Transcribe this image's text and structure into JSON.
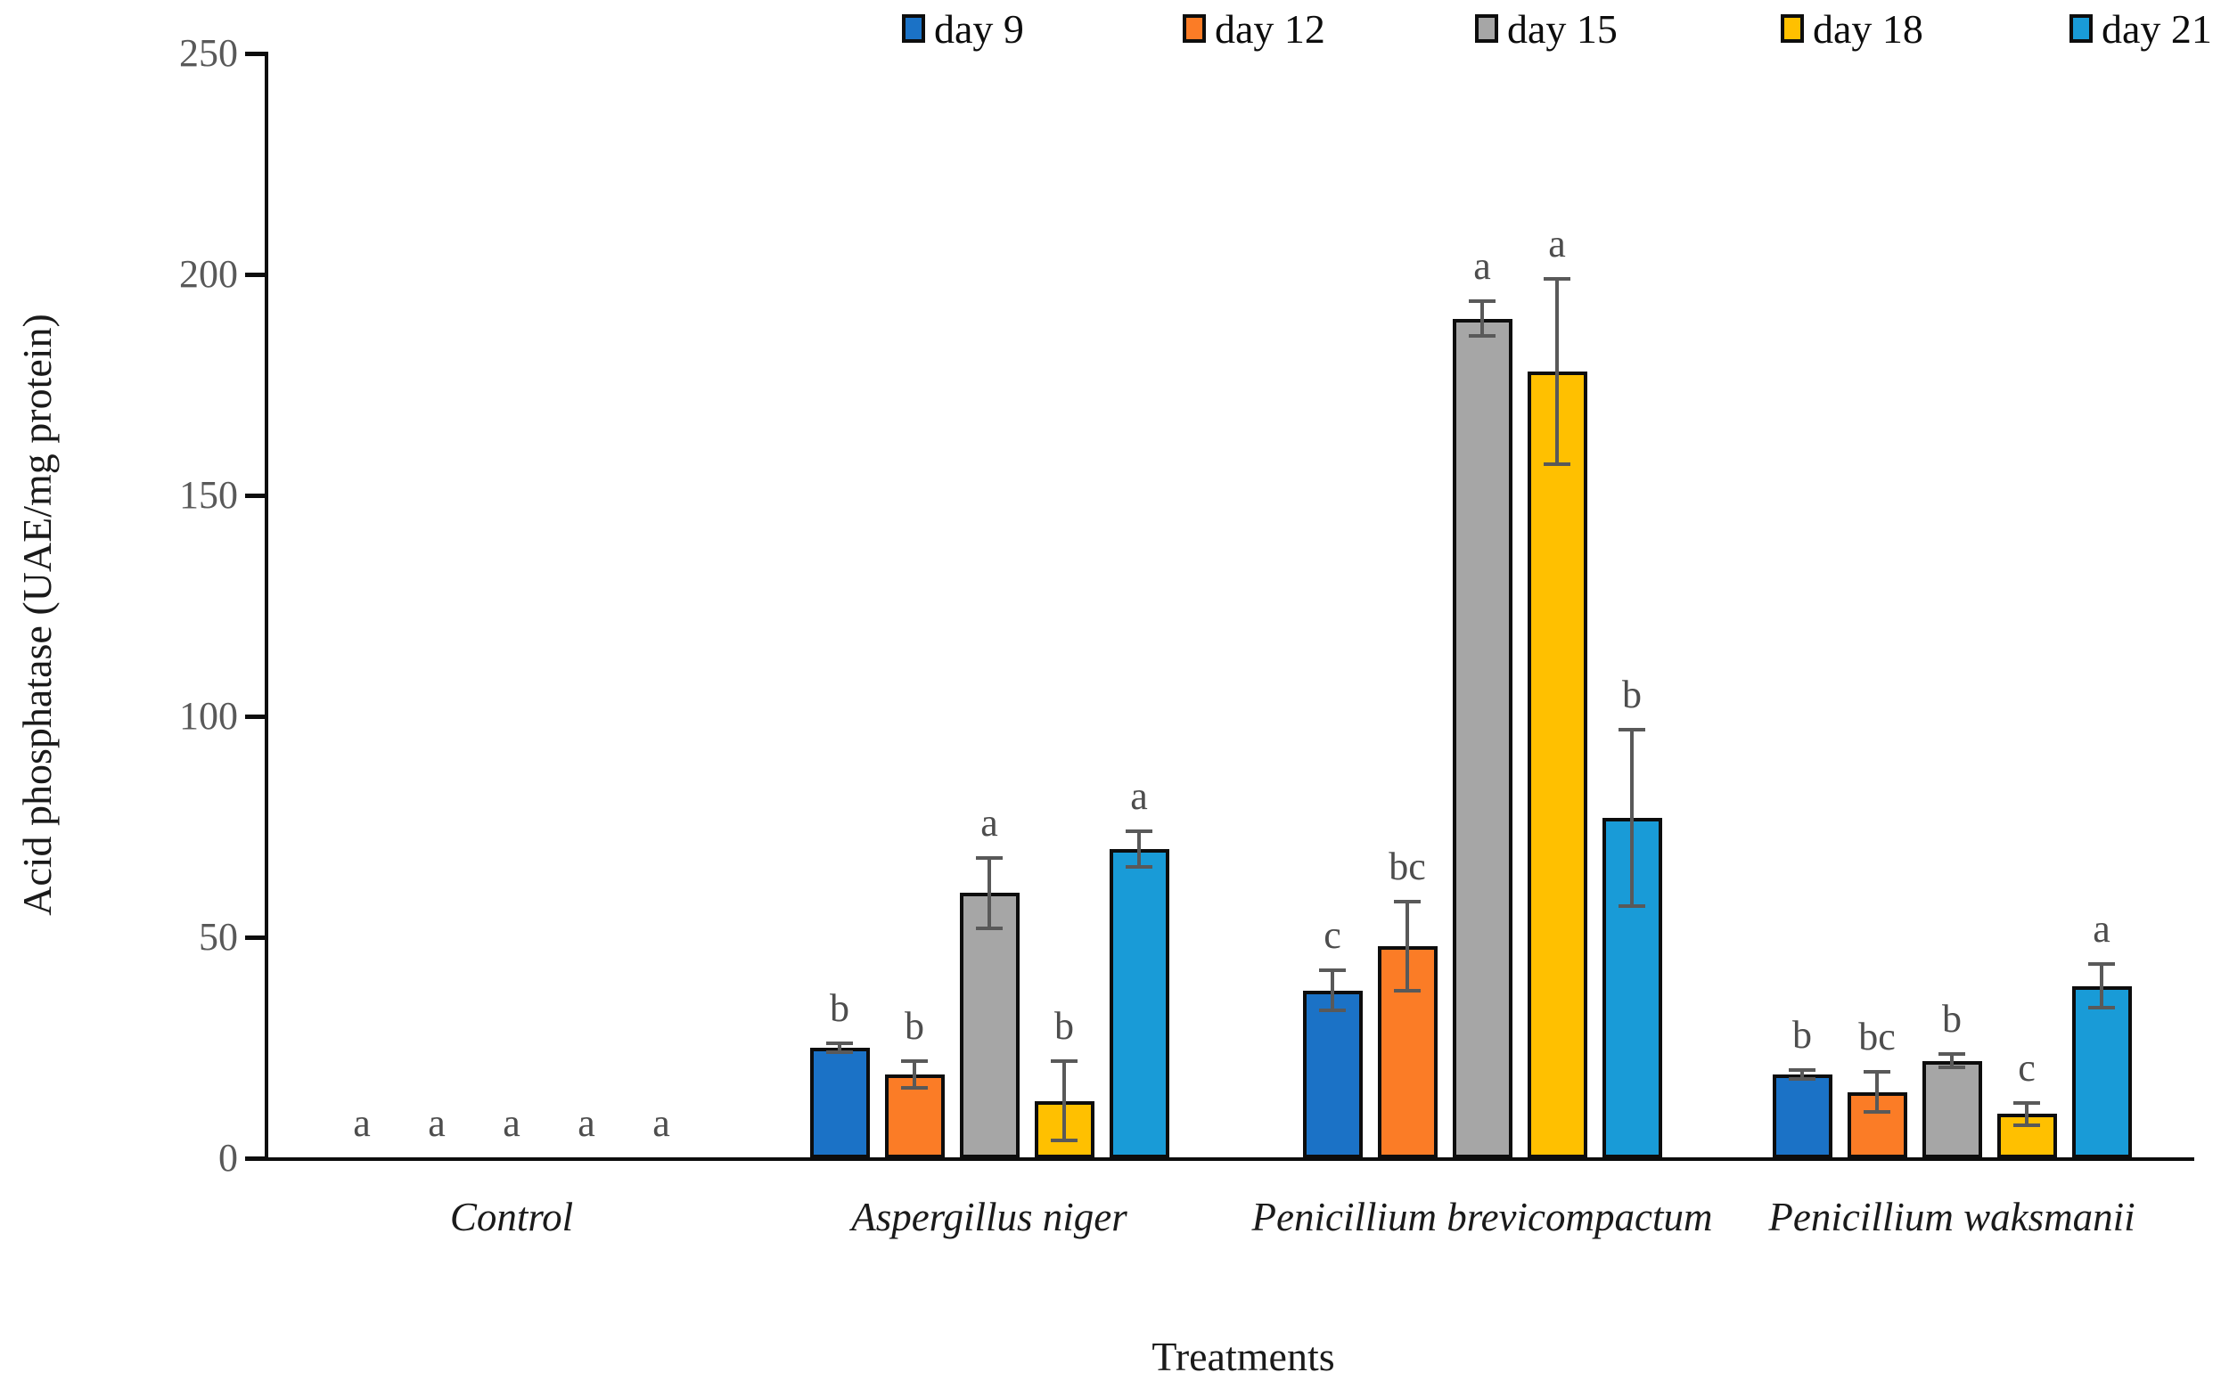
{
  "chart_data": {
    "type": "bar",
    "title": "",
    "ylabel": "Acid phosphatase (UAE/mg protein)",
    "xlabel": "Treatments",
    "ylim": [
      0,
      250
    ],
    "yticks": [
      0,
      50,
      100,
      150,
      200,
      250
    ],
    "grid": "off",
    "legend_position": "top",
    "error_bar_color": "#595959",
    "categories": [
      "Control",
      "Aspergillus niger",
      "Penicillium brevicompactum",
      "Penicillium waksmanii"
    ],
    "series": [
      {
        "name": "day 9",
        "color": "#1B72C6",
        "values": [
          0,
          25,
          38,
          19
        ],
        "errors": [
          0,
          1,
          4.5,
          1
        ],
        "letters": [
          "a",
          "b",
          "c",
          "b"
        ]
      },
      {
        "name": "day 12",
        "color": "#FB7C26",
        "values": [
          0,
          19,
          48,
          15
        ],
        "errors": [
          0,
          3,
          10,
          4.5
        ],
        "letters": [
          "a",
          "b",
          "bc",
          "bc"
        ]
      },
      {
        "name": "day 15",
        "color": "#A6A6A6",
        "values": [
          0,
          60,
          190,
          22
        ],
        "errors": [
          0,
          8,
          4,
          1.5
        ],
        "letters": [
          "a",
          "a",
          "a",
          "b"
        ]
      },
      {
        "name": "day 18",
        "color": "#FFC000",
        "values": [
          0,
          13,
          178,
          10
        ],
        "errors": [
          0,
          9,
          21,
          2.5
        ],
        "letters": [
          "a",
          "b",
          "a",
          "c"
        ]
      },
      {
        "name": "day 21",
        "color": "#199BD7",
        "values": [
          0,
          70,
          77,
          39
        ],
        "errors": [
          0,
          4,
          20,
          5
        ],
        "letters": [
          "a",
          "a",
          "b",
          "a"
        ]
      }
    ]
  }
}
